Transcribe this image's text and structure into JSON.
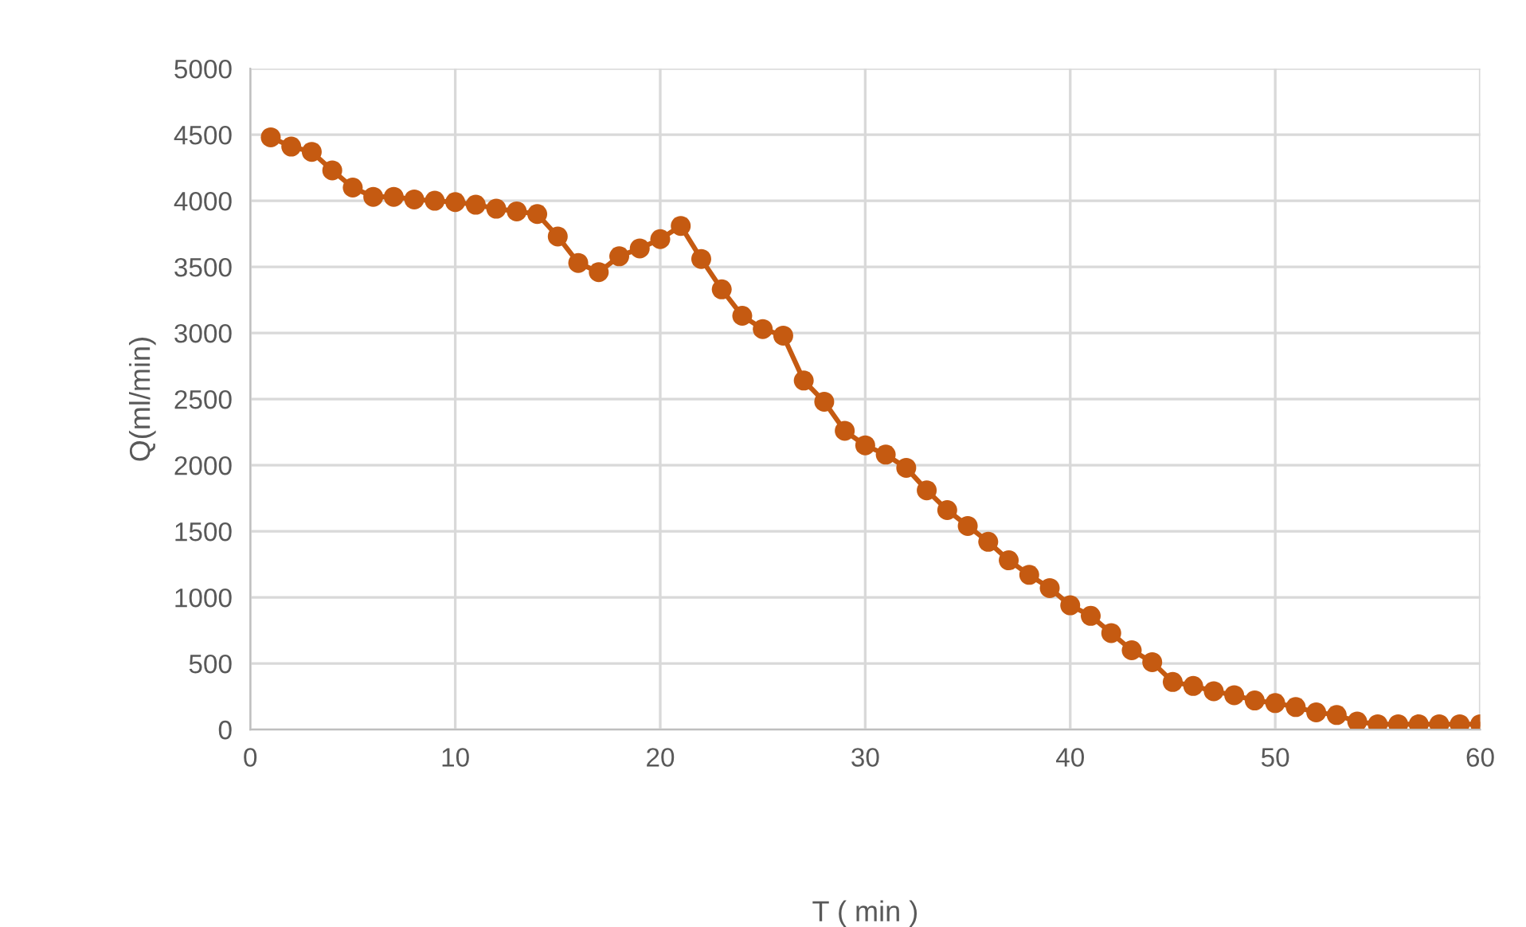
{
  "chart_data": {
    "type": "line",
    "xlabel": "T ( min )",
    "ylabel": "Q(ml/min)",
    "x": [
      1,
      2,
      3,
      4,
      5,
      6,
      7,
      8,
      9,
      10,
      11,
      12,
      13,
      14,
      15,
      16,
      17,
      18,
      19,
      20,
      21,
      22,
      23,
      24,
      25,
      26,
      27,
      28,
      29,
      30,
      31,
      32,
      33,
      34,
      35,
      36,
      37,
      38,
      39,
      40,
      41,
      42,
      43,
      44,
      45,
      46,
      47,
      48,
      49,
      50,
      51,
      52,
      53,
      54,
      55,
      56,
      57,
      58,
      59,
      60
    ],
    "series": [
      {
        "color": "#c55a11",
        "values": [
          4480,
          4410,
          4370,
          4230,
          4100,
          4030,
          4030,
          4010,
          4000,
          3990,
          3970,
          3940,
          3920,
          3900,
          3730,
          3530,
          3460,
          3580,
          3640,
          3710,
          3810,
          3560,
          3330,
          3130,
          3030,
          2980,
          2640,
          2480,
          2260,
          2150,
          2080,
          1980,
          1810,
          1660,
          1540,
          1420,
          1280,
          1170,
          1070,
          940,
          860,
          730,
          600,
          510,
          360,
          330,
          290,
          260,
          220,
          200,
          170,
          130,
          110,
          60,
          40,
          40,
          40,
          40,
          40,
          40
        ]
      }
    ],
    "xlim": [
      0,
      60
    ],
    "xticks": [
      0,
      10,
      20,
      30,
      40,
      50,
      60
    ],
    "ylim": [
      0,
      5000
    ],
    "yticks": [
      0,
      500,
      1000,
      1500,
      2000,
      2500,
      3000,
      3500,
      4000,
      4500,
      5000
    ],
    "grid": true,
    "marker": "circle",
    "line_style": "solid"
  }
}
